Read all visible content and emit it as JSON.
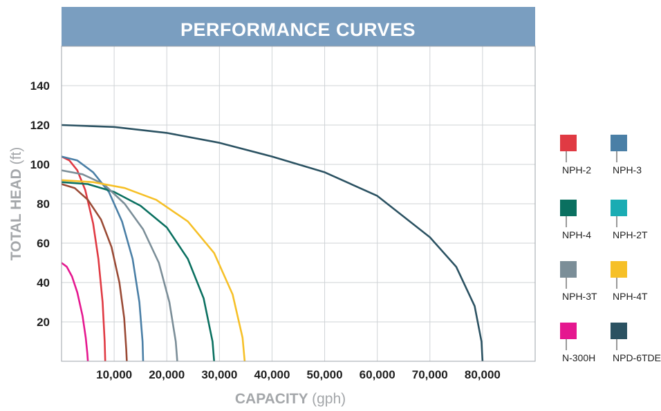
{
  "chart_data": {
    "type": "line",
    "title": "PERFORMANCE CURVES",
    "xlabel": "CAPACITY",
    "xlabel_unit": "(gph)",
    "ylabel": "TOTAL HEAD",
    "ylabel_unit": "(ft)",
    "xlim": [
      0,
      90000
    ],
    "ylim": [
      0,
      160
    ],
    "x_ticks": [
      10000,
      20000,
      30000,
      40000,
      50000,
      60000,
      70000,
      80000
    ],
    "x_tick_labels": [
      "10,000",
      "20,000",
      "30,000",
      "40,000",
      "50,000",
      "60,000",
      "70,000",
      "80,000"
    ],
    "y_ticks": [
      20,
      40,
      60,
      80,
      100,
      120,
      140
    ],
    "y_tick_labels": [
      "20",
      "40",
      "60",
      "80",
      "100",
      "120",
      "140"
    ],
    "grid": true,
    "legend_position": "right",
    "series": [
      {
        "name": "NPH-2",
        "color": "#e03a43",
        "x": [
          0,
          1500,
          3000,
          4500,
          6000,
          7000,
          7800,
          8200,
          8300
        ],
        "y": [
          104,
          102,
          97,
          87,
          70,
          52,
          30,
          10,
          0
        ]
      },
      {
        "name": "NPH-3",
        "color": "#4a7fa6",
        "x": [
          0,
          3000,
          6000,
          9000,
          11500,
          13500,
          14800,
          15400,
          15500
        ],
        "y": [
          104,
          102,
          96,
          86,
          71,
          52,
          30,
          10,
          0
        ]
      },
      {
        "name": "NPH-4",
        "color": "#0a7060",
        "x": [
          0,
          5000,
          10000,
          15000,
          20000,
          24000,
          27000,
          28700,
          29000
        ],
        "y": [
          91,
          90,
          86,
          79,
          68,
          52,
          32,
          10,
          0
        ]
      },
      {
        "name": "NPH-2T",
        "color": "#1aacb3",
        "x": [],
        "y": []
      },
      {
        "name": "NPH-3T",
        "color": "#7b8e98",
        "x": [
          0,
          4000,
          8000,
          12000,
          15500,
          18500,
          20500,
          21700,
          22000
        ],
        "y": [
          97,
          95,
          90,
          80,
          67,
          50,
          30,
          10,
          0
        ]
      },
      {
        "name": "NPH-4T",
        "color": "#f6c027",
        "x": [
          0,
          6000,
          12000,
          18000,
          24000,
          29000,
          32500,
          34400,
          34800
        ],
        "y": [
          92,
          91,
          88,
          82,
          71,
          55,
          34,
          12,
          0
        ]
      },
      {
        "name": "N-300H",
        "color": "#e5178f",
        "x": [
          0,
          1000,
          2000,
          3000,
          4000,
          4600,
          4900,
          5000
        ],
        "y": [
          50,
          48,
          43,
          35,
          23,
          12,
          4,
          0
        ]
      },
      {
        "name": "NPD-6TDE",
        "color": "#2b5262",
        "x": [
          0,
          10000,
          20000,
          30000,
          40000,
          50000,
          60000,
          70000,
          75000,
          78500,
          79800,
          80000
        ],
        "y": [
          120,
          119,
          116,
          111,
          104,
          96,
          84,
          63,
          48,
          28,
          10,
          0
        ]
      },
      {
        "name": "",
        "color": "#9a4a35",
        "x": [
          0,
          2500,
          5000,
          7500,
          9500,
          11000,
          11900,
          12300,
          12400
        ],
        "y": [
          90,
          88,
          82,
          72,
          58,
          40,
          22,
          6,
          0
        ]
      }
    ]
  }
}
